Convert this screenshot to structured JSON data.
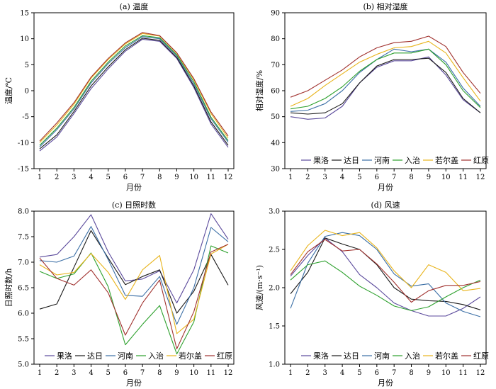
{
  "chart_data": [
    {
      "type": "line",
      "title": "(a) 温度",
      "xlabel": "月份",
      "ylabel": "温度/℃",
      "xlim": [
        1,
        12
      ],
      "ylim": [
        -15,
        15
      ],
      "x": [
        1,
        2,
        3,
        4,
        5,
        6,
        7,
        8,
        9,
        10,
        11,
        12
      ],
      "yticks": [
        -15,
        -10,
        -5,
        0,
        5,
        10,
        15
      ],
      "grid": false,
      "legend": "none",
      "series": [
        {
          "name": "果洛",
          "color": "#5b4a9c",
          "values": [
            -11.6,
            -8.9,
            -4.4,
            0.4,
            4.2,
            7.6,
            9.9,
            9.5,
            6.2,
            0.6,
            -6.4,
            -10.9
          ]
        },
        {
          "name": "达日",
          "color": "#1a1a1a",
          "values": [
            -11.2,
            -8.5,
            -4.0,
            0.9,
            4.6,
            7.9,
            10.1,
            9.7,
            6.4,
            0.9,
            -6.0,
            -10.5
          ]
        },
        {
          "name": "河南",
          "color": "#3a6ea5",
          "values": [
            -10.8,
            -7.5,
            -3.5,
            1.5,
            5.2,
            8.3,
            10.4,
            10.0,
            6.7,
            1.3,
            -5.4,
            -9.9
          ]
        },
        {
          "name": "入治",
          "color": "#2ca02c",
          "values": [
            -10.5,
            -7.2,
            -3.2,
            1.8,
            5.5,
            8.6,
            10.6,
            10.2,
            6.9,
            1.7,
            -5.1,
            -9.6
          ]
        },
        {
          "name": "若尔盖",
          "color": "#e8b41c",
          "values": [
            -10.0,
            -6.6,
            -2.6,
            2.4,
            6.0,
            9.0,
            11.0,
            10.5,
            7.2,
            2.1,
            -4.4,
            -9.1
          ]
        },
        {
          "name": "红原",
          "color": "#a0312e",
          "values": [
            -9.7,
            -6.2,
            -2.3,
            2.6,
            6.2,
            9.2,
            11.2,
            10.6,
            7.3,
            2.3,
            -4.1,
            -8.7
          ]
        }
      ]
    },
    {
      "type": "line",
      "title": "(b) 相对湿度",
      "xlabel": "月份",
      "ylabel": "相对湿度/%",
      "xlim": [
        1,
        12
      ],
      "ylim": [
        30,
        90
      ],
      "x": [
        1,
        2,
        3,
        4,
        5,
        6,
        7,
        8,
        9,
        10,
        11,
        12
      ],
      "yticks": [
        30,
        40,
        50,
        60,
        70,
        80,
        90
      ],
      "grid": false,
      "legend": "bottom",
      "series": [
        {
          "name": "果洛",
          "color": "#5b4a9c",
          "values": [
            50.0,
            49.0,
            49.5,
            54.0,
            63.0,
            69.0,
            71.5,
            71.5,
            73.0,
            66.0,
            56.5,
            51.5
          ]
        },
        {
          "name": "达日",
          "color": "#1a1a1a",
          "values": [
            51.5,
            51.0,
            51.5,
            55.0,
            63.0,
            69.5,
            72.0,
            72.0,
            72.5,
            67.0,
            57.0,
            51.5
          ]
        },
        {
          "name": "河南",
          "color": "#3a6ea5",
          "values": [
            52.0,
            52.5,
            55.0,
            60.0,
            67.0,
            72.0,
            76.0,
            75.0,
            76.0,
            71.0,
            61.0,
            54.0
          ]
        },
        {
          "name": "入治",
          "color": "#2ca02c",
          "values": [
            53.0,
            54.0,
            57.0,
            61.5,
            67.5,
            72.0,
            74.5,
            74.5,
            76.0,
            70.0,
            60.0,
            53.5
          ]
        },
        {
          "name": "若尔盖",
          "color": "#e8b41c",
          "values": [
            54.0,
            57.0,
            62.0,
            66.5,
            71.0,
            74.0,
            76.5,
            77.0,
            79.0,
            74.5,
            65.0,
            56.0
          ]
        },
        {
          "name": "红原",
          "color": "#a0312e",
          "values": [
            57.5,
            60.0,
            64.0,
            68.0,
            73.0,
            76.5,
            78.5,
            79.0,
            81.0,
            77.0,
            67.0,
            59.0
          ]
        }
      ]
    },
    {
      "type": "line",
      "title": "(c) 日照时数",
      "xlabel": "月份",
      "ylabel": "日照时数/h",
      "xlim": [
        1,
        12
      ],
      "ylim": [
        5.0,
        8.0
      ],
      "x": [
        1,
        2,
        3,
        4,
        5,
        6,
        7,
        8,
        9,
        10,
        11,
        12
      ],
      "yticks": [
        "5.0",
        "5.5",
        "6.0",
        "6.5",
        "7.0",
        "7.5",
        "8.0"
      ],
      "grid": false,
      "legend": "bottom",
      "series": [
        {
          "name": "果洛",
          "color": "#5b4a9c",
          "values": [
            7.1,
            7.15,
            7.5,
            7.93,
            7.2,
            6.63,
            6.67,
            6.83,
            6.2,
            6.85,
            7.95,
            7.45
          ]
        },
        {
          "name": "达日",
          "color": "#1a1a1a",
          "values": [
            6.08,
            6.18,
            6.9,
            7.62,
            7.08,
            6.56,
            6.72,
            6.85,
            6.0,
            6.43,
            7.15,
            6.55
          ]
        },
        {
          "name": "河南",
          "color": "#3a6ea5",
          "values": [
            7.03,
            7.0,
            7.12,
            7.7,
            7.05,
            6.35,
            6.33,
            6.72,
            5.78,
            6.5,
            7.68,
            7.4
          ]
        },
        {
          "name": "入治",
          "color": "#2ca02c",
          "values": [
            6.82,
            6.68,
            6.77,
            7.18,
            6.52,
            5.38,
            5.78,
            6.15,
            5.2,
            5.83,
            7.32,
            7.18
          ]
        },
        {
          "name": "若尔盖",
          "color": "#e8b41c",
          "values": [
            6.95,
            6.75,
            6.8,
            7.17,
            6.8,
            6.27,
            6.85,
            7.13,
            5.6,
            5.88,
            7.16,
            7.35
          ]
        },
        {
          "name": "红原",
          "color": "#a0312e",
          "values": [
            7.08,
            6.68,
            6.55,
            6.85,
            6.4,
            5.57,
            6.2,
            6.65,
            5.3,
            6.03,
            7.2,
            7.35
          ]
        }
      ]
    },
    {
      "type": "line",
      "title": "(d) 风速",
      "xlabel": "月份",
      "ylabel": "风速/(m·s⁻¹)",
      "xlim": [
        1,
        12
      ],
      "ylim": [
        1.0,
        3.0
      ],
      "x": [
        1,
        2,
        3,
        4,
        5,
        6,
        7,
        8,
        9,
        10,
        11,
        12
      ],
      "yticks": [
        "1.0",
        "1.5",
        "2.0",
        "2.5",
        "3.0"
      ],
      "grid": false,
      "legend": "bottom",
      "series": [
        {
          "name": "果洛",
          "color": "#5b4a9c",
          "values": [
            2.15,
            2.42,
            2.65,
            2.47,
            2.17,
            2.0,
            1.8,
            1.7,
            1.63,
            1.63,
            1.73,
            1.88
          ]
        },
        {
          "name": "达日",
          "color": "#1a1a1a",
          "values": [
            1.92,
            2.2,
            2.65,
            2.57,
            2.5,
            2.3,
            2.0,
            1.85,
            1.83,
            1.82,
            1.78,
            1.71
          ]
        },
        {
          "name": "河南",
          "color": "#3a6ea5",
          "values": [
            1.73,
            2.32,
            2.67,
            2.72,
            2.68,
            2.5,
            2.18,
            2.02,
            2.05,
            1.8,
            1.69,
            1.62
          ]
        },
        {
          "name": "入治",
          "color": "#2ca02c",
          "values": [
            2.1,
            2.3,
            2.35,
            2.2,
            2.02,
            1.9,
            1.76,
            1.7,
            1.75,
            1.88,
            2.0,
            2.1
          ]
        },
        {
          "name": "若尔盖",
          "color": "#e8b41c",
          "values": [
            2.22,
            2.55,
            2.75,
            2.68,
            2.72,
            2.52,
            2.22,
            2.0,
            2.3,
            2.2,
            1.96,
            1.99
          ]
        },
        {
          "name": "红原",
          "color": "#a0312e",
          "values": [
            2.17,
            2.47,
            2.63,
            2.48,
            2.5,
            2.31,
            2.07,
            1.81,
            1.96,
            2.03,
            2.03,
            2.08
          ]
        }
      ]
    }
  ]
}
